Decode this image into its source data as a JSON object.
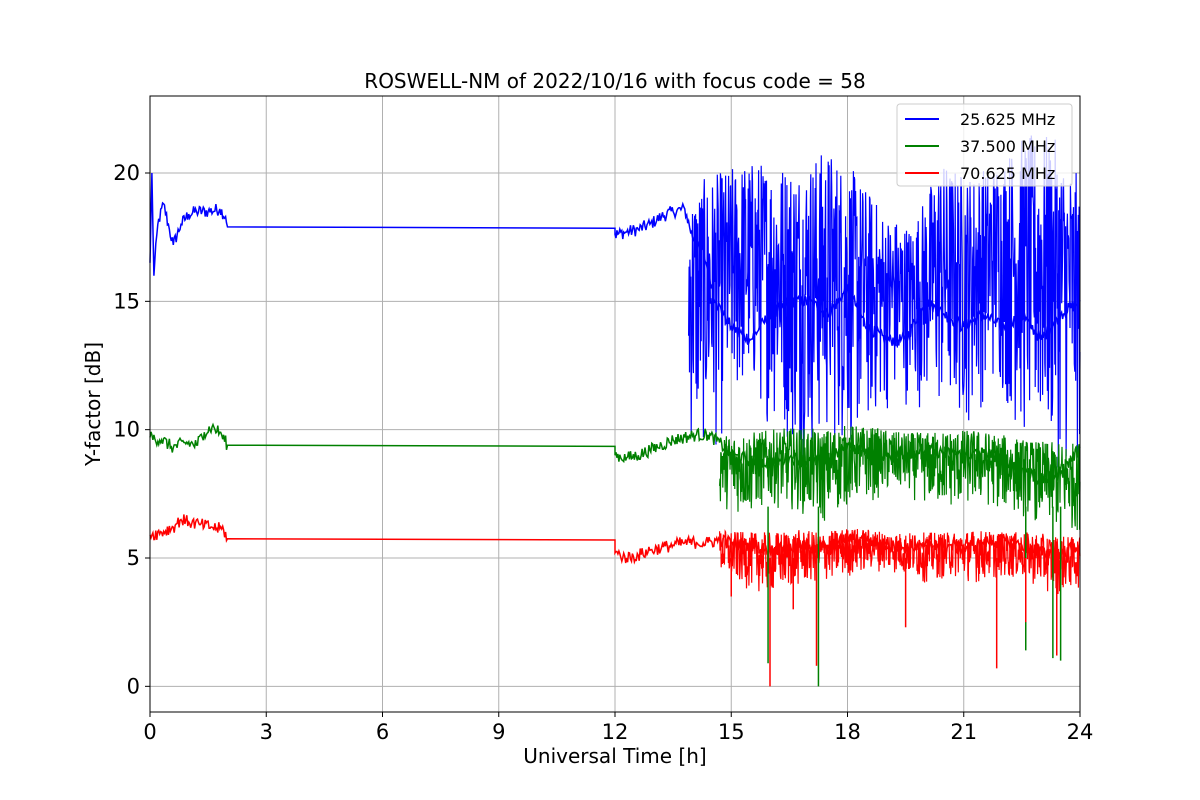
{
  "chart_data": {
    "type": "line",
    "title": "ROSWELL-NM of 2022/10/16 with focus code = 58",
    "xlabel": "Universal Time [h]",
    "ylabel": "Y-factor [dB]",
    "xlim": [
      0,
      24
    ],
    "ylim": [
      -1,
      23
    ],
    "xticks": [
      0,
      3,
      6,
      9,
      12,
      15,
      18,
      21,
      24
    ],
    "yticks": [
      0,
      5,
      10,
      15,
      20
    ],
    "grid": true,
    "legend_position": "top-right",
    "colors": {
      "blue": "#0000ff",
      "green": "#008000",
      "red": "#ff0000"
    },
    "series": [
      {
        "name": "25.625 MHz",
        "color": "#0000ff",
        "x": [
          0,
          0.05,
          0.1,
          0.2,
          0.35,
          0.5,
          0.6,
          0.8,
          1.0,
          1.2,
          1.5,
          1.8,
          1.95,
          2.0,
          12.0,
          12.0,
          12.3,
          12.6,
          12.9,
          13.2,
          13.5,
          13.8,
          14.0,
          14.3,
          14.6,
          15.0,
          15.5,
          16.0,
          16.5,
          17.0,
          17.5,
          18.0,
          18.5,
          19.0,
          19.5,
          20.0,
          20.5,
          21.0,
          21.5,
          22.0,
          22.5,
          23.0,
          23.5,
          24.0
        ],
        "y": [
          16.5,
          20.0,
          16.0,
          18.0,
          18.8,
          17.8,
          17.2,
          18.0,
          18.4,
          18.5,
          18.5,
          18.6,
          18.3,
          17.9,
          17.85,
          17.6,
          17.7,
          17.8,
          18.0,
          18.3,
          18.5,
          18.6,
          17.5,
          16.8,
          15.0,
          14.0,
          13.5,
          14.5,
          15.0,
          15.0,
          14.5,
          15.5,
          14.0,
          13.5,
          13.5,
          15.0,
          14.5,
          14.0,
          14.5,
          14.0,
          14.5,
          13.5,
          14.5,
          15.0
        ],
        "band_start": 13.9,
        "band_low": [
          9.0,
          9.0,
          11.0,
          10.0,
          8.5,
          9.0,
          9.0,
          10.5,
          11.0,
          10.0,
          10.0,
          11.5,
          9.0,
          8.5,
          8.0
        ],
        "band_high": [
          19.5,
          20.0,
          20.5,
          20.5,
          20.5,
          21.0,
          20.0,
          18.5,
          18.0,
          20.5,
          20.0,
          20.5,
          21.5,
          21.5,
          19.8
        ]
      },
      {
        "name": "37.500 MHz",
        "color": "#008000",
        "x": [
          0,
          0.3,
          0.6,
          0.9,
          1.2,
          1.4,
          1.6,
          1.8,
          2.0,
          12.0,
          12.0,
          12.3,
          12.6,
          12.9,
          13.2,
          13.5,
          13.8,
          14.1,
          14.4,
          14.7,
          15.0,
          15.5,
          16.0,
          16.5,
          17.0,
          17.5,
          18.0,
          18.5,
          19.0,
          19.5,
          20.0,
          20.5,
          21.0,
          21.5,
          22.0,
          22.5,
          23.0,
          23.5,
          24.0
        ],
        "y": [
          9.7,
          9.6,
          9.3,
          9.5,
          9.4,
          9.9,
          10.1,
          9.9,
          9.4,
          9.35,
          9.0,
          8.9,
          9.0,
          9.2,
          9.4,
          9.6,
          9.7,
          9.8,
          9.8,
          9.5,
          9.0,
          8.8,
          8.7,
          8.9,
          8.8,
          8.8,
          9.4,
          9.1,
          9.0,
          9.1,
          9.2,
          9.1,
          9.0,
          9.1,
          8.9,
          8.5,
          8.0,
          8.3,
          9.3
        ],
        "band_start": 14.7,
        "band_low": [
          7.0,
          6.5,
          7.0,
          6.8,
          6.2,
          7.0,
          7.2,
          7.5,
          7.0,
          6.8,
          7.0,
          6.8,
          6.5,
          6.0,
          6.0
        ],
        "band_high": [
          9.8,
          9.9,
          10.0,
          10.1,
          10.0,
          10.2,
          10.1,
          9.9,
          9.9,
          10.0,
          10.0,
          9.8,
          9.6,
          9.5,
          9.5
        ]
      },
      {
        "name": "70.625 MHz",
        "color": "#ff0000",
        "x": [
          0,
          0.3,
          0.6,
          0.8,
          1.0,
          1.3,
          1.6,
          1.9,
          2.0,
          12.0,
          12.0,
          12.3,
          12.6,
          12.9,
          13.2,
          13.5,
          13.8,
          14.1,
          14.4,
          14.7,
          15.0,
          15.5,
          16.0,
          16.5,
          17.0,
          17.5,
          18.0,
          18.5,
          19.0,
          19.5,
          20.0,
          20.5,
          21.0,
          21.5,
          22.0,
          22.5,
          23.0,
          23.5,
          24.0
        ],
        "y": [
          5.9,
          6.0,
          6.2,
          6.5,
          6.4,
          6.3,
          6.2,
          6.1,
          5.75,
          5.7,
          5.2,
          5.0,
          5.1,
          5.3,
          5.4,
          5.5,
          5.6,
          5.6,
          5.6,
          5.7,
          5.6,
          5.5,
          5.3,
          5.4,
          5.5,
          5.4,
          5.8,
          5.7,
          5.5,
          5.4,
          5.5,
          5.5,
          5.4,
          5.6,
          5.7,
          5.5,
          5.2,
          5.2,
          5.5
        ],
        "band_start": 14.7,
        "band_low": [
          4.2,
          3.8,
          3.5,
          3.8,
          4.0,
          4.2,
          4.5,
          4.3,
          4.0,
          4.2,
          4.0,
          4.2,
          4.0,
          3.5,
          3.8
        ],
        "band_high": [
          6.1,
          6.0,
          6.0,
          6.1,
          6.0,
          6.2,
          6.1,
          6.0,
          6.0,
          6.0,
          6.1,
          6.0,
          6.0,
          5.9,
          5.8
        ]
      }
    ],
    "spikes": [
      {
        "series": 1,
        "x": 15.95,
        "y": 0.9
      },
      {
        "series": 1,
        "x": 17.25,
        "y": 0.0
      },
      {
        "series": 1,
        "x": 22.6,
        "y": 1.4
      },
      {
        "series": 1,
        "x": 23.3,
        "y": 1.1
      },
      {
        "series": 1,
        "x": 23.5,
        "y": 1.0
      },
      {
        "series": 2,
        "x": 16.0,
        "y": 0.0
      },
      {
        "series": 2,
        "x": 17.2,
        "y": 0.8
      },
      {
        "series": 2,
        "x": 21.85,
        "y": 0.7
      },
      {
        "series": 2,
        "x": 23.4,
        "y": 1.2
      },
      {
        "series": 2,
        "x": 15.0,
        "y": 3.5
      },
      {
        "series": 2,
        "x": 16.6,
        "y": 3.0
      },
      {
        "series": 2,
        "x": 19.5,
        "y": 2.3
      },
      {
        "series": 2,
        "x": 22.6,
        "y": 2.5
      }
    ]
  }
}
